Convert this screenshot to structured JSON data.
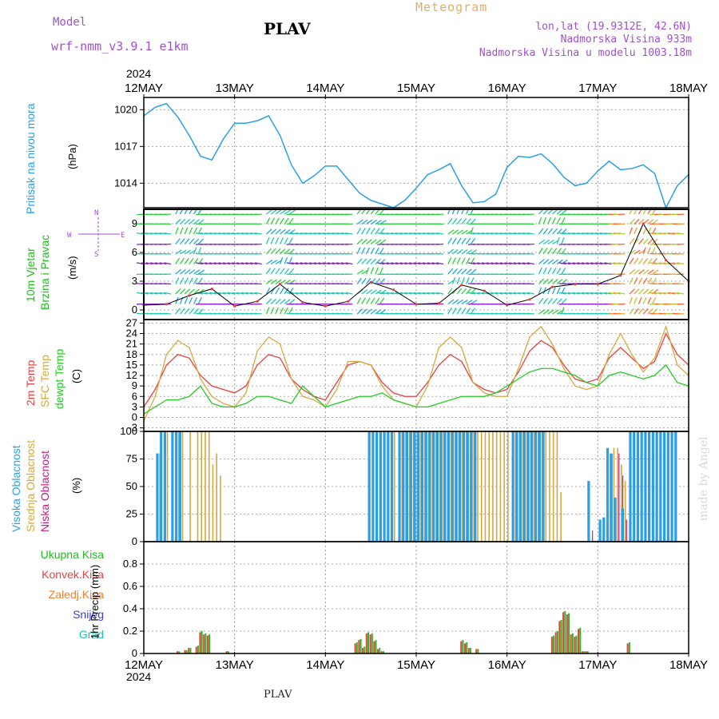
{
  "header": {
    "model_label": "Model",
    "model_name": "wrf-nmm_v3.9.1  e1km",
    "station": "PLAV",
    "title": "Meteogram",
    "lonlat": "lon,lat (19.9312E, 42.6N)",
    "altitude": "Nadmorska Visina 933m",
    "model_altitude": "Nadmorska Visina u modelu 1003.18m",
    "footer_station": "PLAV",
    "watermark": "made by Angel",
    "colors": {
      "purple": "#a050d0",
      "orange": "#e0b060"
    }
  },
  "time_axis": {
    "year": "2024",
    "ticks": [
      "12MAY",
      "13MAY",
      "14MAY",
      "15MAY",
      "16MAY",
      "17MAY",
      "18MAY"
    ],
    "range_hours": [
      0,
      144
    ]
  },
  "panels": {
    "pressure": {
      "label": "Pritisak na nivou mora",
      "unit": "(hPa)",
      "color": "#2b9fe6"
    },
    "wind": {
      "label1": "10m Vjetar",
      "label2": "Brzina i Pravac",
      "unit": "(m/s)",
      "compass_n": "N",
      "compass_s": "S",
      "compass_w": "W",
      "compass_e": "E",
      "label_color": "#22bb22"
    },
    "temp": {
      "label_2m": "2m Temp",
      "label_sfc": "SFC Temp",
      "label_dew": "dewpt Temp",
      "unit": "(C)",
      "colors": {
        "t2m": "#e84040",
        "sfc": "#d8a840",
        "dew": "#22cc22"
      }
    },
    "cloud": {
      "label_high": "Visoka Oblacnost",
      "label_mid": "Srednja Oblacnost",
      "label_low": "Niska Oblacnost",
      "unit": "(%)",
      "colors": {
        "high": "#2b9fe6",
        "mid": "#d8a840",
        "low": "#c02080"
      }
    },
    "precip": {
      "label_total": "Ukupna Kisa",
      "label_conv": "Konvek.Kisa",
      "label_frozen": "Zaledj.Kisa",
      "label_snow": "Snijeg",
      "label_hail": "Grad",
      "unit": "1hr Precip (mm)",
      "colors": {
        "total": "#22bb22",
        "conv": "#e84040",
        "frozen": "#f08030",
        "snow": "#4040e0",
        "hail": "#20c0b0"
      }
    }
  },
  "chart_data": [
    {
      "type": "line",
      "name": "pressure",
      "ylim": [
        1012,
        1021
      ],
      "yticks": [
        1014,
        1017,
        1020
      ],
      "x": [
        0,
        3,
        6,
        9,
        12,
        15,
        18,
        21,
        24,
        27,
        30,
        33,
        36,
        39,
        42,
        45,
        48,
        51,
        54,
        57,
        60,
        63,
        66,
        69,
        72,
        75,
        78,
        81,
        84,
        87,
        90,
        93,
        96,
        99,
        102,
        105,
        108,
        111,
        114,
        117,
        120,
        123,
        126,
        129,
        132,
        135,
        138,
        141,
        144
      ],
      "values": [
        1019.5,
        1020.2,
        1020.5,
        1019.4,
        1017.9,
        1016.2,
        1015.9,
        1017.6,
        1018.9,
        1018.9,
        1019.1,
        1019.5,
        1017.9,
        1015.5,
        1014.0,
        1014.6,
        1015.4,
        1015.4,
        1014.3,
        1013.2,
        1012.6,
        1012.3,
        1012.0,
        1012.6,
        1013.6,
        1014.7,
        1015.1,
        1015.6,
        1013.8,
        1012.4,
        1012.5,
        1013.1,
        1015.3,
        1016.2,
        1016.1,
        1016.4,
        1015.6,
        1014.5,
        1013.8,
        1014.0,
        1015.0,
        1015.8,
        1015.1,
        1015.2,
        1015.5,
        1014.8,
        1012.0,
        1013.8,
        1014.7
      ]
    },
    {
      "type": "line",
      "name": "wind_speed",
      "ylim": [
        -1,
        10.5
      ],
      "yticks": [
        0,
        3,
        6,
        9
      ],
      "x": [
        0,
        6,
        12,
        18,
        24,
        30,
        36,
        42,
        48,
        54,
        60,
        66,
        72,
        78,
        84,
        90,
        96,
        102,
        108,
        114,
        120,
        126,
        132,
        138,
        144
      ],
      "values": [
        0.5,
        0.6,
        1.5,
        2.2,
        0.4,
        0.9,
        2.7,
        0.8,
        0.4,
        0.9,
        2.9,
        2.1,
        0.6,
        0.7,
        2.6,
        2.0,
        0.5,
        1.1,
        2.4,
        2.7,
        2.7,
        3.6,
        9.0,
        5.2,
        3.0
      ]
    },
    {
      "type": "line",
      "name": "temperature",
      "ylim": [
        -4,
        28
      ],
      "yticks": [
        -3,
        0,
        3,
        6,
        9,
        12,
        15,
        18,
        21,
        24,
        27
      ],
      "x": [
        0,
        3,
        6,
        9,
        12,
        15,
        18,
        21,
        24,
        27,
        30,
        33,
        36,
        39,
        42,
        45,
        48,
        51,
        54,
        57,
        60,
        63,
        66,
        69,
        72,
        75,
        78,
        81,
        84,
        87,
        90,
        93,
        96,
        99,
        102,
        105,
        108,
        111,
        114,
        117,
        120,
        123,
        126,
        129,
        132,
        135,
        138,
        141,
        144
      ],
      "series": [
        {
          "name": "2m Temp",
          "values": [
            3,
            8,
            15,
            18,
            17,
            12,
            9,
            8,
            7,
            9,
            15,
            18,
            17,
            11,
            8,
            6,
            5,
            10,
            15,
            16,
            15,
            10,
            7,
            6,
            6,
            10,
            15,
            18,
            16,
            10,
            8,
            7,
            8,
            13,
            19,
            22,
            20,
            15,
            11,
            10,
            11,
            17,
            20,
            17,
            14,
            16,
            24,
            18,
            15
          ]
        },
        {
          "name": "SFC Temp",
          "values": [
            -1,
            6,
            18,
            22,
            20,
            11,
            6,
            4,
            3,
            7,
            19,
            23,
            21,
            11,
            6,
            5,
            3,
            8,
            16,
            16,
            15,
            9,
            5,
            4,
            3,
            9,
            20,
            23,
            20,
            10,
            7,
            6,
            6,
            14,
            23,
            26,
            21,
            14,
            9,
            8,
            9,
            18,
            24,
            18,
            13,
            17,
            26,
            15,
            12
          ]
        },
        {
          "name": "dewpt Temp",
          "values": [
            1,
            3,
            5,
            5,
            6,
            9,
            4,
            3,
            3,
            4,
            6,
            6,
            5,
            4,
            9,
            6,
            3,
            4,
            5,
            6,
            6,
            7,
            5,
            4,
            3,
            3,
            4,
            5,
            6,
            6,
            6,
            7,
            9,
            11,
            13,
            14,
            14,
            13,
            12,
            10,
            9,
            12,
            13,
            12,
            11,
            12,
            15,
            10,
            9
          ]
        }
      ]
    },
    {
      "type": "bar",
      "name": "cloud_cover",
      "ylim": [
        0,
        100
      ],
      "yticks": [
        0,
        25,
        50,
        75,
        100
      ],
      "categories_hours": [
        4,
        5,
        6,
        8,
        9,
        10,
        12,
        14,
        15,
        16,
        17,
        18,
        19,
        20,
        60,
        61,
        62,
        63,
        64,
        65,
        66,
        68,
        69,
        70,
        71,
        72,
        73,
        74,
        75,
        76,
        77,
        78,
        79,
        80,
        81,
        82,
        83,
        84,
        85,
        86,
        87,
        88,
        89,
        90,
        91,
        92,
        93,
        94,
        95,
        96,
        98,
        99,
        100,
        101,
        102,
        103,
        104,
        105,
        106,
        107,
        108,
        109,
        110,
        118,
        121,
        122,
        123,
        124,
        125,
        126,
        127,
        128,
        129,
        130,
        131,
        132,
        133,
        134,
        135,
        136,
        137,
        138,
        139,
        140,
        141
      ],
      "series": [
        {
          "name": "Visoka Oblacnost",
          "values": [
            80,
            100,
            100,
            100,
            100,
            100,
            0,
            0,
            0,
            0,
            0,
            0,
            0,
            0,
            100,
            100,
            100,
            100,
            100,
            100,
            100,
            100,
            100,
            100,
            100,
            100,
            100,
            100,
            100,
            100,
            100,
            100,
            100,
            100,
            100,
            100,
            100,
            100,
            100,
            100,
            100,
            100,
            0,
            0,
            0,
            0,
            0,
            0,
            0,
            0,
            100,
            100,
            100,
            100,
            100,
            100,
            100,
            100,
            100,
            0,
            0,
            0,
            0,
            55,
            20,
            22,
            85,
            80,
            40,
            0,
            30,
            0,
            100,
            100,
            100,
            100,
            100,
            100,
            100,
            100,
            100,
            100,
            100,
            100,
            100
          ]
        },
        {
          "name": "Srednja Oblacnost",
          "values": [
            80,
            0,
            100,
            0,
            100,
            100,
            100,
            100,
            100,
            100,
            100,
            70,
            80,
            60,
            0,
            0,
            0,
            0,
            0,
            0,
            100,
            100,
            100,
            100,
            100,
            100,
            100,
            100,
            100,
            100,
            100,
            100,
            100,
            100,
            100,
            100,
            100,
            100,
            100,
            100,
            100,
            100,
            100,
            100,
            100,
            100,
            100,
            100,
            100,
            100,
            100,
            100,
            100,
            100,
            100,
            100,
            100,
            100,
            100,
            100,
            100,
            100,
            45,
            0,
            0,
            0,
            80,
            85,
            85,
            70,
            55,
            0,
            0,
            0,
            0,
            0,
            0,
            0,
            0,
            0,
            0,
            0,
            0,
            0,
            0
          ]
        },
        {
          "name": "Niska Oblacnost",
          "values": [
            0,
            0,
            0,
            0,
            30,
            0,
            0,
            0,
            0,
            0,
            0,
            0,
            0,
            0,
            0,
            0,
            0,
            0,
            0,
            0,
            0,
            0,
            0,
            0,
            0,
            0,
            0,
            0,
            0,
            0,
            0,
            0,
            0,
            0,
            0,
            0,
            0,
            0,
            0,
            0,
            0,
            0,
            0,
            0,
            0,
            0,
            0,
            0,
            0,
            0,
            0,
            0,
            0,
            0,
            0,
            0,
            0,
            0,
            0,
            0,
            0,
            0,
            0,
            10,
            0,
            0,
            0,
            0,
            80,
            60,
            20,
            0,
            0,
            0,
            0,
            0,
            0,
            0,
            0,
            0,
            0,
            0,
            0,
            0,
            0
          ]
        }
      ]
    },
    {
      "type": "bar",
      "name": "precipitation",
      "ylim": [
        0,
        1.0
      ],
      "yticks": [
        0,
        0.2,
        0.4,
        0.6,
        0.8
      ],
      "categories_hours": [
        9,
        11,
        12,
        14,
        15,
        16,
        17,
        22,
        56,
        57,
        58,
        59,
        60,
        61,
        62,
        63,
        84,
        85,
        86,
        88,
        108,
        109,
        110,
        111,
        112,
        113,
        114,
        115,
        116,
        117,
        128
      ],
      "series": [
        {
          "name": "Ukupna Kisa",
          "values": [
            0.02,
            0.03,
            0.05,
            0.07,
            0.2,
            0.18,
            0.17,
            0.02,
            0.1,
            0.13,
            0.06,
            0.19,
            0.18,
            0.12,
            0.05,
            0.02,
            0.12,
            0.1,
            0.05,
            0.04,
            0.16,
            0.2,
            0.3,
            0.38,
            0.36,
            0.18,
            0.16,
            0.23,
            0.02,
            0.02,
            0.1
          ]
        },
        {
          "name": "Konvek.Kisa",
          "values": [
            0.02,
            0.03,
            0.05,
            0.06,
            0.19,
            0.17,
            0.16,
            0.02,
            0.09,
            0.12,
            0.05,
            0.18,
            0.17,
            0.11,
            0.04,
            0.02,
            0.11,
            0.09,
            0.05,
            0.04,
            0.15,
            0.19,
            0.29,
            0.37,
            0.35,
            0.17,
            0.15,
            0.22,
            0.02,
            0.02,
            0.09
          ]
        }
      ]
    }
  ]
}
